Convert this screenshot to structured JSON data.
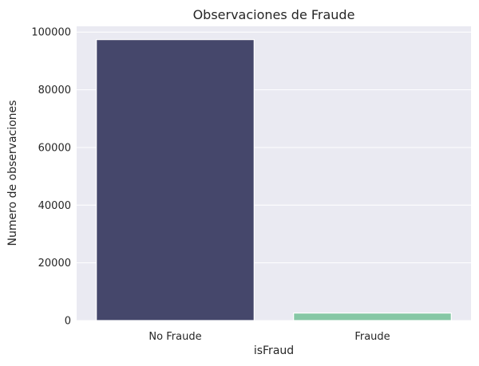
{
  "chart_data": {
    "type": "bar",
    "title": "Observaciones de Fraude",
    "xlabel": "isFraud",
    "ylabel": "Numero de observaciones",
    "categories": [
      "No Fraude",
      "Fraude"
    ],
    "values": [
      97400,
      2600
    ],
    "colors": [
      "#45476b",
      "#86c7a5"
    ],
    "ylim": [
      0,
      102000
    ],
    "yticks": [
      0,
      20000,
      40000,
      60000,
      80000,
      100000
    ],
    "grid": true,
    "background": "#eaeaf2"
  }
}
